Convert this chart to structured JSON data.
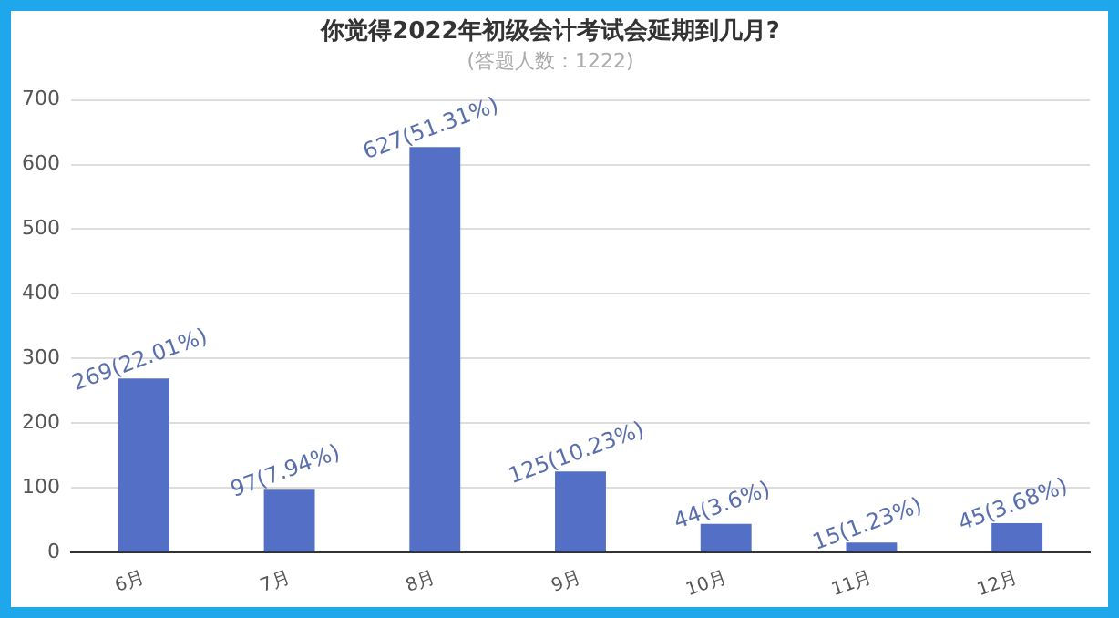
{
  "chart_data": {
    "type": "bar",
    "title": "你觉得2022年初级会计考试会延期到几月?",
    "subtitle": "(答题人数：1222)",
    "categories": [
      "6月",
      "7月",
      "8月",
      "9月",
      "10月",
      "11月",
      "12月"
    ],
    "values": [
      269,
      97,
      627,
      125,
      44,
      15,
      45
    ],
    "value_labels": [
      "269(22.01%)",
      "97(7.94%)",
      "627(51.31%)",
      "125(10.23%)",
      "44(3.6%)",
      "15(1.23%)",
      "45(3.68%)"
    ],
    "color": "#5470c6",
    "ylim": [
      0,
      700
    ],
    "yticks": [
      0,
      100,
      200,
      300,
      400,
      500,
      600,
      700
    ],
    "grid": "y",
    "legend": false
  }
}
